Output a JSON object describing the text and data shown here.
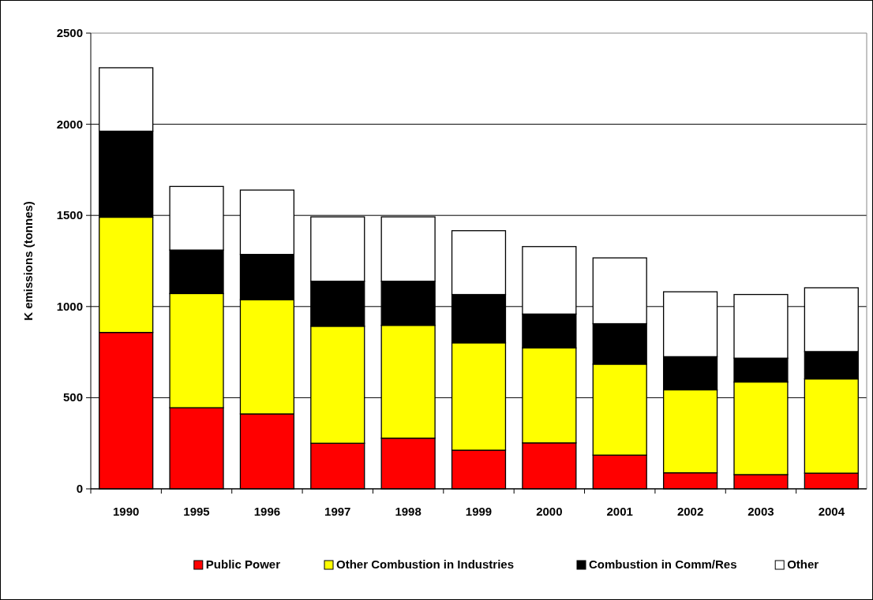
{
  "chart_data": {
    "type": "bar",
    "stacked": true,
    "ylabel": "K emissions (tonnes)",
    "categories": [
      "1990",
      "1995",
      "1996",
      "1997",
      "1998",
      "1999",
      "2000",
      "2001",
      "2002",
      "2003",
      "2004"
    ],
    "series": [
      {
        "name": "Public Power",
        "color": "#ff0000",
        "values": [
          858,
          445,
          411,
          250,
          278,
          212,
          252,
          185,
          88,
          78,
          86
        ]
      },
      {
        "name": "Other Combustion in Industries",
        "color": "#ffff00",
        "values": [
          632,
          626,
          627,
          642,
          619,
          589,
          521,
          499,
          455,
          508,
          517
        ]
      },
      {
        "name": "Combustion in Comm/Res",
        "color": "#000000",
        "values": [
          472,
          239,
          248,
          247,
          242,
          265,
          186,
          222,
          182,
          131,
          150
        ]
      },
      {
        "name": "Other",
        "color": "#ffffff",
        "values": [
          348,
          349,
          353,
          353,
          353,
          350,
          370,
          361,
          356,
          349,
          350
        ]
      }
    ],
    "ylim": [
      0,
      2500
    ],
    "yticks": [
      0,
      500,
      1000,
      1500,
      2000,
      2500
    ],
    "grid": "y",
    "legend": "bottom"
  }
}
